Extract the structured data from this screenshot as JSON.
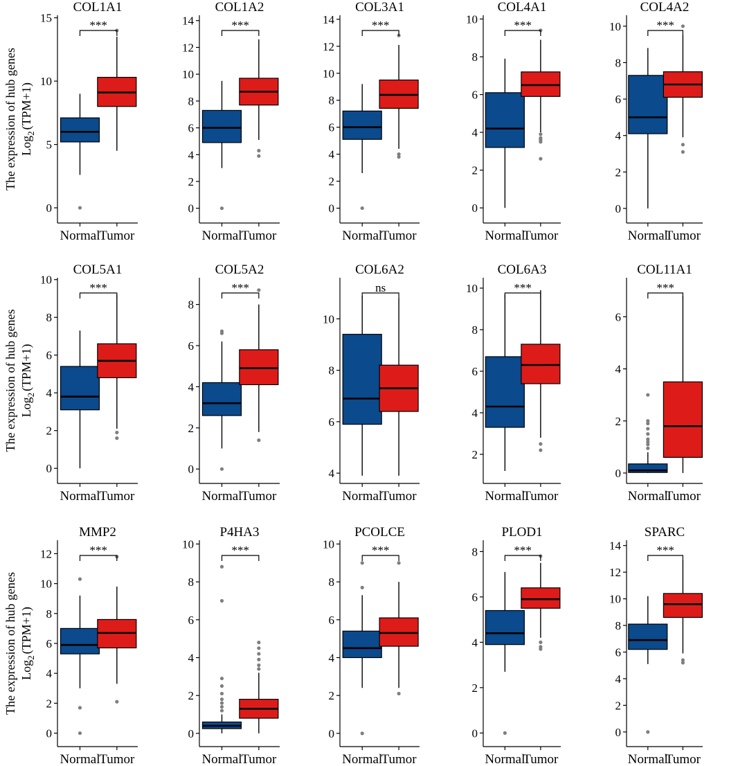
{
  "figure": {
    "y_axis_label_line1": "The expression of hub genes",
    "y_axis_label_log": "Log",
    "y_axis_label_base": "2",
    "y_axis_label_rest": "(TPM+1)",
    "colors": {
      "normal": "#0b4a8c",
      "tumor": "#dd1c1a",
      "outlier": "#7f7f7f"
    }
  },
  "chart_data": [
    {
      "type": "box",
      "title": "COL1A1",
      "categories": [
        "Normal",
        "Tumor"
      ],
      "ylim": [
        -1.2,
        15.2
      ],
      "yticks": [
        0,
        5,
        10,
        15
      ],
      "significance": "***",
      "boxes": [
        {
          "group": "Normal",
          "whisker_low": 2.6,
          "q1": 5.2,
          "median": 6.0,
          "q3": 7.1,
          "whisker_high": 9.0,
          "outliers": [
            0
          ]
        },
        {
          "group": "Tumor",
          "whisker_low": 4.5,
          "q1": 8.0,
          "median": 9.1,
          "q3": 10.3,
          "whisker_high": 13.5,
          "outliers": [
            14
          ]
        }
      ]
    },
    {
      "type": "box",
      "title": "COL1A2",
      "categories": [
        "Normal",
        "Tumor"
      ],
      "ylim": [
        -1.1,
        14.4
      ],
      "yticks": [
        0,
        2,
        4,
        6,
        8,
        10,
        12,
        14
      ],
      "significance": "***",
      "boxes": [
        {
          "group": "Normal",
          "whisker_low": 3.0,
          "q1": 4.9,
          "median": 6.0,
          "q3": 7.3,
          "whisker_high": 9.5,
          "outliers": [
            0
          ]
        },
        {
          "group": "Tumor",
          "whisker_low": 5.1,
          "q1": 7.7,
          "median": 8.7,
          "q3": 9.7,
          "whisker_high": 12.6,
          "outliers": [
            3.9,
            4.3
          ]
        }
      ]
    },
    {
      "type": "box",
      "title": "COL3A1",
      "categories": [
        "Normal",
        "Tumor"
      ],
      "ylim": [
        -1.1,
        14.3
      ],
      "yticks": [
        0,
        2,
        4,
        6,
        8,
        10,
        12,
        14
      ],
      "significance": "***",
      "boxes": [
        {
          "group": "Normal",
          "whisker_low": 2.6,
          "q1": 5.1,
          "median": 6.0,
          "q3": 7.2,
          "whisker_high": 9.2,
          "outliers": [
            0
          ]
        },
        {
          "group": "Tumor",
          "whisker_low": 4.4,
          "q1": 7.4,
          "median": 8.4,
          "q3": 9.5,
          "whisker_high": 12.1,
          "outliers": [
            3.8,
            4.0,
            12.8
          ]
        }
      ]
    },
    {
      "type": "box",
      "title": "COL4A1",
      "categories": [
        "Normal",
        "Tumor"
      ],
      "ylim": [
        -0.8,
        10.2
      ],
      "yticks": [
        0,
        2,
        4,
        6,
        8,
        10
      ],
      "significance": "***",
      "boxes": [
        {
          "group": "Normal",
          "whisker_low": 0,
          "q1": 3.2,
          "median": 4.2,
          "q3": 6.1,
          "whisker_high": 7.9,
          "outliers": []
        },
        {
          "group": "Tumor",
          "whisker_low": 4.0,
          "q1": 5.9,
          "median": 6.5,
          "q3": 7.2,
          "whisker_high": 8.9,
          "outliers": [
            2.6,
            3.5,
            3.6,
            3.7,
            3.9,
            9.4
          ]
        }
      ]
    },
    {
      "type": "box",
      "title": "COL4A2",
      "categories": [
        "Normal",
        "Tumor"
      ],
      "ylim": [
        -0.8,
        10.6
      ],
      "yticks": [
        0,
        2,
        4,
        6,
        8,
        10
      ],
      "significance": "***",
      "boxes": [
        {
          "group": "Normal",
          "whisker_low": 0,
          "q1": 4.1,
          "median": 5.0,
          "q3": 7.3,
          "whisker_high": 8.8,
          "outliers": []
        },
        {
          "group": "Tumor",
          "whisker_low": 3.9,
          "q1": 6.1,
          "median": 6.8,
          "q3": 7.5,
          "whisker_high": 9.5,
          "outliers": [
            3.1,
            3.5,
            10.0
          ]
        }
      ]
    },
    {
      "type": "box",
      "title": "COL5A1",
      "categories": [
        "Normal",
        "Tumor"
      ],
      "ylim": [
        -0.8,
        10.1
      ],
      "yticks": [
        0,
        2,
        4,
        6,
        8,
        10
      ],
      "significance": "***",
      "boxes": [
        {
          "group": "Normal",
          "whisker_low": 0,
          "q1": 3.1,
          "median": 3.8,
          "q3": 5.4,
          "whisker_high": 7.3,
          "outliers": []
        },
        {
          "group": "Tumor",
          "whisker_low": 2.1,
          "q1": 4.8,
          "median": 5.7,
          "q3": 6.6,
          "whisker_high": 9.2,
          "outliers": [
            1.6,
            1.9
          ]
        }
      ]
    },
    {
      "type": "box",
      "title": "COL5A2",
      "categories": [
        "Normal",
        "Tumor"
      ],
      "ylim": [
        -0.7,
        9.3
      ],
      "yticks": [
        0,
        2,
        4,
        6,
        8
      ],
      "significance": "***",
      "boxes": [
        {
          "group": "Normal",
          "whisker_low": 1.0,
          "q1": 2.6,
          "median": 3.2,
          "q3": 4.2,
          "whisker_high": 6.2,
          "outliers": [
            0,
            6.6,
            6.7
          ]
        },
        {
          "group": "Tumor",
          "whisker_low": 1.8,
          "q1": 4.1,
          "median": 4.9,
          "q3": 5.8,
          "whisker_high": 8.0,
          "outliers": [
            1.4,
            8.7
          ]
        }
      ]
    },
    {
      "type": "box",
      "title": "COL6A2",
      "categories": [
        "Normal",
        "Tumor"
      ],
      "ylim": [
        3.6,
        11.6
      ],
      "yticks": [
        4,
        6,
        8,
        10
      ],
      "significance": "ns",
      "boxes": [
        {
          "group": "Normal",
          "whisker_low": 3.9,
          "q1": 5.9,
          "median": 6.9,
          "q3": 9.4,
          "whisker_high": 10.9,
          "outliers": []
        },
        {
          "group": "Tumor",
          "whisker_low": 3.9,
          "q1": 6.4,
          "median": 7.3,
          "q3": 8.2,
          "whisker_high": 10.8,
          "outliers": []
        }
      ]
    },
    {
      "type": "box",
      "title": "COL6A3",
      "categories": [
        "Normal",
        "Tumor"
      ],
      "ylim": [
        0.6,
        10.5
      ],
      "yticks": [
        2,
        4,
        6,
        8,
        10
      ],
      "significance": "***",
      "boxes": [
        {
          "group": "Normal",
          "whisker_low": 1.2,
          "q1": 3.3,
          "median": 4.3,
          "q3": 6.7,
          "whisker_high": 9.7,
          "outliers": []
        },
        {
          "group": "Tumor",
          "whisker_low": 2.8,
          "q1": 5.4,
          "median": 6.3,
          "q3": 7.3,
          "whisker_high": 9.9,
          "outliers": [
            2.2,
            2.5
          ]
        }
      ]
    },
    {
      "type": "box",
      "title": "COL11A1",
      "categories": [
        "Normal",
        "Tumor"
      ],
      "ylim": [
        -0.4,
        7.5
      ],
      "yticks": [
        0,
        2,
        4,
        6
      ],
      "significance": "***",
      "boxes": [
        {
          "group": "Normal",
          "whisker_low": 0,
          "q1": 0.02,
          "median": 0.1,
          "q3": 0.35,
          "whisker_high": 0.8,
          "outliers": [
            0.95,
            1.1,
            1.2,
            1.3,
            1.5,
            1.7,
            1.9,
            2.0,
            3.0
          ]
        },
        {
          "group": "Tumor",
          "whisker_low": 0,
          "q1": 0.6,
          "median": 1.8,
          "q3": 3.5,
          "whisker_high": 6.8,
          "outliers": []
        }
      ]
    },
    {
      "type": "box",
      "title": "MMP2",
      "categories": [
        "Normal",
        "Tumor"
      ],
      "ylim": [
        -0.9,
        12.9
      ],
      "yticks": [
        0,
        2,
        4,
        6,
        8,
        10,
        12
      ],
      "significance": "***",
      "boxes": [
        {
          "group": "Normal",
          "whisker_low": 3.0,
          "q1": 5.3,
          "median": 5.9,
          "q3": 7.0,
          "whisker_high": 9.2,
          "outliers": [
            0,
            1.7,
            10.3
          ]
        },
        {
          "group": "Tumor",
          "whisker_low": 3.3,
          "q1": 5.7,
          "median": 6.7,
          "q3": 7.6,
          "whisker_high": 9.8,
          "outliers": [
            2.1,
            11.8
          ]
        }
      ]
    },
    {
      "type": "box",
      "title": "P4HA3",
      "categories": [
        "Normal",
        "Tumor"
      ],
      "ylim": [
        -0.7,
        10.2
      ],
      "yticks": [
        0,
        2,
        4,
        6,
        8,
        10
      ],
      "significance": "***",
      "boxes": [
        {
          "group": "Normal",
          "whisker_low": 0,
          "q1": 0.25,
          "median": 0.4,
          "q3": 0.6,
          "whisker_high": 1.0,
          "outliers": [
            1.2,
            1.4,
            1.6,
            1.8,
            2.1,
            2.5,
            2.9,
            7.0,
            8.8
          ]
        },
        {
          "group": "Tumor",
          "whisker_low": 0,
          "q1": 0.8,
          "median": 1.3,
          "q3": 1.8,
          "whisker_high": 3.2,
          "outliers": [
            3.4,
            3.6,
            3.9,
            4.2,
            4.5,
            4.8
          ]
        }
      ]
    },
    {
      "type": "box",
      "title": "PCOLCE",
      "categories": [
        "Normal",
        "Tumor"
      ],
      "ylim": [
        -0.7,
        10.2
      ],
      "yticks": [
        0,
        2,
        4,
        6,
        8,
        10
      ],
      "significance": "***",
      "boxes": [
        {
          "group": "Normal",
          "whisker_low": 2.4,
          "q1": 4.0,
          "median": 4.5,
          "q3": 5.4,
          "whisker_high": 7.3,
          "outliers": [
            0,
            7.7,
            9.0
          ]
        },
        {
          "group": "Tumor",
          "whisker_low": 2.4,
          "q1": 4.6,
          "median": 5.3,
          "q3": 6.1,
          "whisker_high": 8.0,
          "outliers": [
            2.1,
            9.0
          ]
        }
      ]
    },
    {
      "type": "box",
      "title": "PLOD1",
      "categories": [
        "Normal",
        "Tumor"
      ],
      "ylim": [
        -0.6,
        8.5
      ],
      "yticks": [
        0,
        2,
        4,
        6,
        8
      ],
      "significance": "***",
      "boxes": [
        {
          "group": "Normal",
          "whisker_low": 2.7,
          "q1": 3.9,
          "median": 4.4,
          "q3": 5.4,
          "whisker_high": 7.1,
          "outliers": [
            0
          ]
        },
        {
          "group": "Tumor",
          "whisker_low": 4.2,
          "q1": 5.5,
          "median": 5.9,
          "q3": 6.4,
          "whisker_high": 7.5,
          "outliers": [
            3.7,
            3.8,
            4.0,
            7.8
          ]
        }
      ]
    },
    {
      "type": "box",
      "title": "SPARC",
      "categories": [
        "Normal",
        "Tumor"
      ],
      "ylim": [
        -1.1,
        14.4
      ],
      "yticks": [
        0,
        2,
        4,
        6,
        8,
        10,
        12,
        14
      ],
      "significance": "***",
      "boxes": [
        {
          "group": "Normal",
          "whisker_low": 5.1,
          "q1": 6.2,
          "median": 6.9,
          "q3": 8.1,
          "whisker_high": 10.2,
          "outliers": [
            0
          ]
        },
        {
          "group": "Tumor",
          "whisker_low": 5.9,
          "q1": 8.6,
          "median": 9.6,
          "q3": 10.4,
          "whisker_high": 12.9,
          "outliers": [
            5.2,
            5.4
          ]
        }
      ]
    }
  ]
}
